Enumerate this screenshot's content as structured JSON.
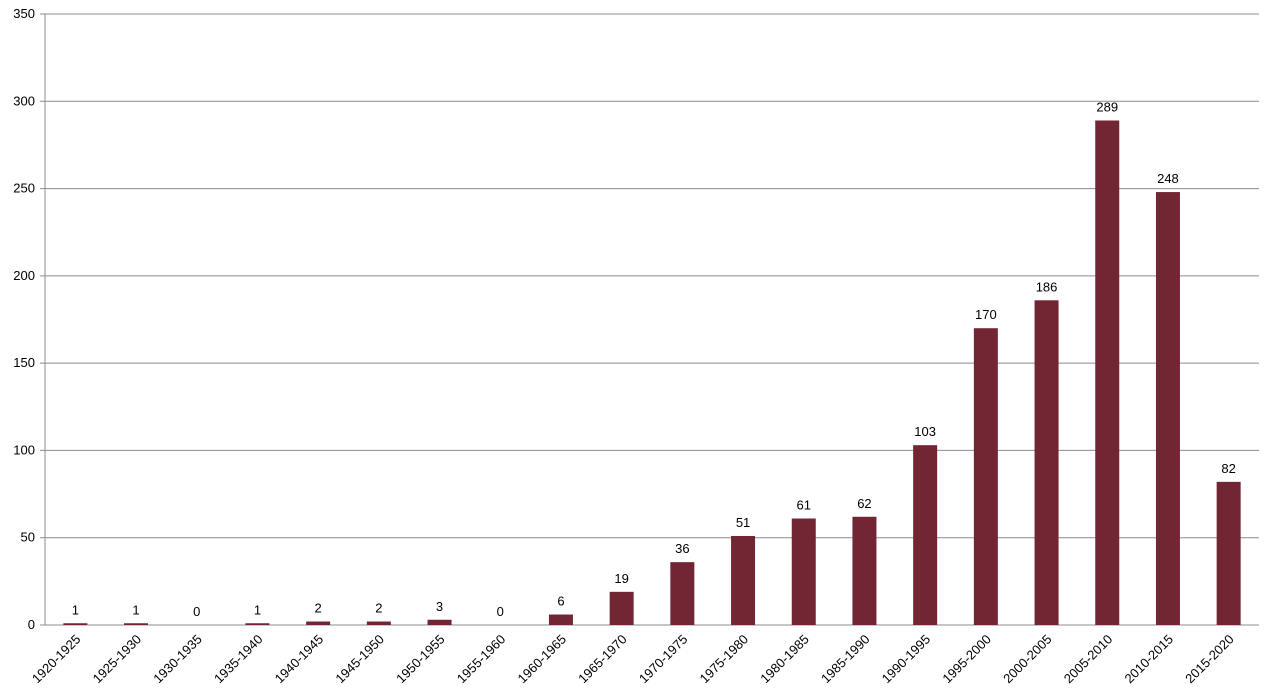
{
  "chart_data": {
    "type": "bar",
    "categories": [
      "1920-1925",
      "1925-1930",
      "1930-1935",
      "1935-1940",
      "1940-1945",
      "1945-1950",
      "1950-1955",
      "1955-1960",
      "1960-1965",
      "1965-1970",
      "1970-1975",
      "1975-1980",
      "1980-1985",
      "1985-1990",
      "1990-1995",
      "1995-2000",
      "2000-2005",
      "2005-2010",
      "2010-2015",
      "2015-2020"
    ],
    "values": [
      1,
      1,
      0,
      1,
      2,
      2,
      3,
      0,
      6,
      19,
      36,
      51,
      61,
      62,
      103,
      170,
      186,
      289,
      248,
      82
    ],
    "color": "#722533",
    "ylim": [
      0,
      350
    ],
    "yticks": [
      0,
      50,
      100,
      150,
      200,
      250,
      300,
      350
    ],
    "grid": true,
    "data_labels": true
  }
}
